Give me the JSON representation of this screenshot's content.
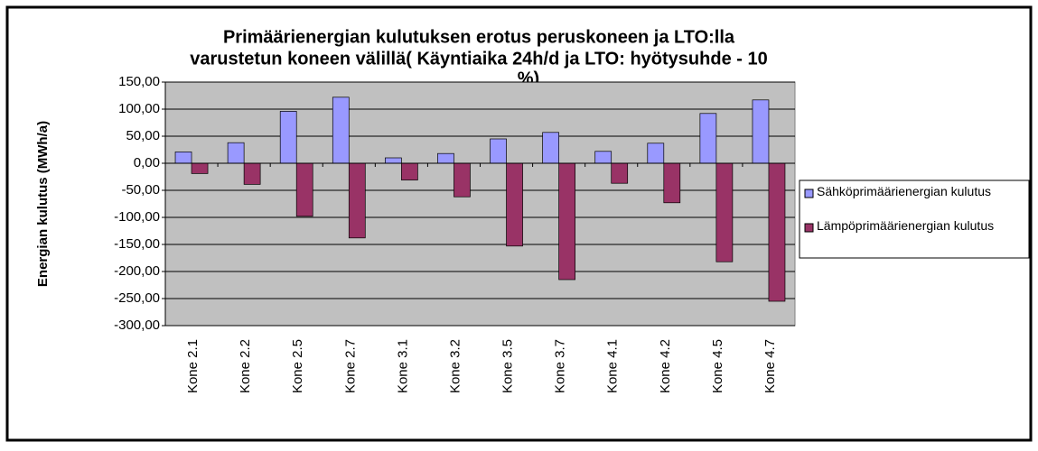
{
  "chart_data": {
    "type": "bar",
    "title": [
      "Primäärienergian kulutuksen erotus peruskoneen ja LTO:lla",
      "varustetun koneen välillä( Käyntiaika 24h/d ja LTO: hyötysuhde - 10",
      "%)"
    ],
    "y_label": "Energian kulutus (MWh/a)",
    "categories": [
      "Kone 2.1",
      "Kone 2.2",
      "Kone 2.5",
      "Kone 2.7",
      "Kone 3.1",
      "Kone 3.2",
      "Kone 3.5",
      "Kone 3.7",
      "Kone 4.1",
      "Kone 4.2",
      "Kone 4.5",
      "Kone 4.7"
    ],
    "series": [
      {
        "name": "Sähköprimäärienergian kulutus",
        "color": "#9999ff",
        "values": [
          21,
          38,
          96,
          122,
          10,
          18,
          45,
          57,
          22,
          37,
          92,
          117
        ]
      },
      {
        "name": "Lämpöprimäärienergian kulutus",
        "color": "#993366",
        "values": [
          -19,
          -39,
          -98,
          -138,
          -31,
          -62,
          -153,
          -215,
          -37,
          -73,
          -182,
          -255
        ]
      }
    ],
    "ylim": [
      -300,
      150
    ],
    "yticks": [
      {
        "value": -300,
        "label": "-300,00"
      },
      {
        "value": -250,
        "label": "-250,00"
      },
      {
        "value": -200,
        "label": "-200,00"
      },
      {
        "value": -150,
        "label": "-150,00"
      },
      {
        "value": -100,
        "label": "-100,00"
      },
      {
        "value": -50,
        "label": "-50,00"
      },
      {
        "value": 0,
        "label": "0,00"
      },
      {
        "value": 50,
        "label": "50,00"
      },
      {
        "value": 100,
        "label": "100,00"
      },
      {
        "value": 150,
        "label": "150,00"
      }
    ],
    "grid": true,
    "legend": "right"
  }
}
